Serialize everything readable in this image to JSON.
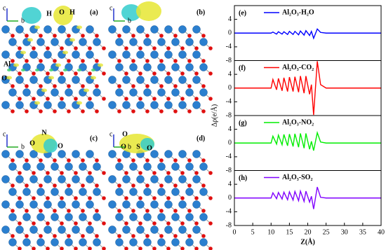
{
  "structure_panels": [
    {
      "label": "(a)",
      "atom_labels": [
        "H",
        "O",
        "H",
        "Al",
        "O"
      ],
      "axis_labels": [
        "c",
        "b"
      ]
    },
    {
      "label": "(b)",
      "atom_labels": [],
      "axis_labels": [
        "c",
        "b"
      ]
    },
    {
      "label": "(c)",
      "atom_labels": [
        "N",
        "O",
        "O"
      ],
      "axis_labels": [
        "c",
        "b"
      ]
    },
    {
      "label": "(d)",
      "atom_labels": [
        "O",
        "S",
        "O",
        "O"
      ],
      "axis_labels": [
        "c",
        "b"
      ]
    }
  ],
  "chart_data": [
    {
      "type": "line",
      "annotation": "(e)",
      "y_label": "Δρ(e/Å)",
      "x": [
        0,
        10,
        10.5,
        11.5,
        12,
        13,
        13.5,
        14.5,
        15,
        16,
        16.5,
        17.5,
        18,
        19,
        19.5,
        20.5,
        21,
        21.6,
        22.6,
        23.5,
        25,
        40
      ],
      "series": [
        {
          "name": "Al₂O₃-H₂O",
          "color": "#0000ff",
          "values": [
            0,
            0,
            0.3,
            -0.3,
            0.4,
            -0.3,
            0.4,
            -0.4,
            0.5,
            -0.4,
            0.5,
            -0.5,
            0.6,
            -0.6,
            0.7,
            -0.7,
            0.5,
            -1.5,
            1.2,
            0.2,
            0,
            0
          ]
        }
      ],
      "xlim": [
        0,
        40
      ],
      "ylim": [
        -8,
        8
      ],
      "yticks": [
        4,
        0,
        -4,
        -8
      ]
    },
    {
      "type": "line",
      "annotation": "(f)",
      "x": [
        0,
        10,
        10.5,
        11.5,
        12,
        13,
        13.5,
        14.5,
        15,
        16,
        16.5,
        17.5,
        18,
        19,
        19.5,
        20.5,
        21,
        21.6,
        22.6,
        23.5,
        25,
        40
      ],
      "series": [
        {
          "name": "Al₂O₃-CO₂",
          "color": "#ff0000",
          "values": [
            0,
            0,
            2.5,
            -0.5,
            2.8,
            -0.8,
            3,
            -1,
            3.2,
            -1,
            3.3,
            -1.2,
            3.5,
            -1.5,
            3.5,
            -1.8,
            1,
            -7.8,
            7.8,
            1,
            0,
            0
          ]
        }
      ],
      "xlim": [
        0,
        40
      ],
      "ylim": [
        -8,
        8
      ],
      "yticks": [
        4,
        0,
        -4,
        -8
      ]
    },
    {
      "type": "line",
      "annotation": "(g)",
      "x": [
        0,
        10,
        10.5,
        11.5,
        12,
        13,
        13.5,
        14.5,
        15,
        16,
        16.5,
        17.5,
        18,
        19,
        19.5,
        20.5,
        21,
        21.6,
        22.6,
        23.5,
        25,
        40
      ],
      "series": [
        {
          "name": "Al₂O₃-NO₂",
          "color": "#00ee00",
          "values": [
            0,
            0,
            2,
            -0.3,
            2.3,
            -0.5,
            2.5,
            -0.8,
            2.6,
            -1,
            2.7,
            -1.2,
            2.8,
            -1.5,
            2.8,
            -1.8,
            0.5,
            -2.2,
            3,
            0.3,
            0,
            0
          ]
        }
      ],
      "xlim": [
        0,
        40
      ],
      "ylim": [
        -8,
        8
      ],
      "yticks": [
        4,
        0,
        -4,
        -8
      ]
    },
    {
      "type": "line",
      "annotation": "(h)",
      "x_label": "Z(Å)",
      "x": [
        0,
        10,
        10.5,
        11.5,
        12,
        13,
        13.5,
        14.5,
        15,
        16,
        16.5,
        17.5,
        18,
        19,
        19.5,
        20.5,
        21,
        21.6,
        22.6,
        23.5,
        25,
        40
      ],
      "series": [
        {
          "name": "Al₂O₃-SO₂",
          "color": "#8000ff",
          "values": [
            0,
            0,
            1.5,
            -0.2,
            1.6,
            -0.3,
            1.7,
            -0.5,
            1.8,
            -0.6,
            1.9,
            -0.8,
            2,
            -1,
            2,
            -1.2,
            0.5,
            -3.2,
            3.2,
            0.2,
            0,
            0
          ]
        }
      ],
      "xlim": [
        0,
        40
      ],
      "ylim": [
        -8,
        8
      ],
      "yticks": [
        4,
        0,
        -4,
        -8
      ],
      "xticks": [
        0,
        5,
        10,
        15,
        20,
        25,
        30,
        35,
        40
      ]
    }
  ]
}
